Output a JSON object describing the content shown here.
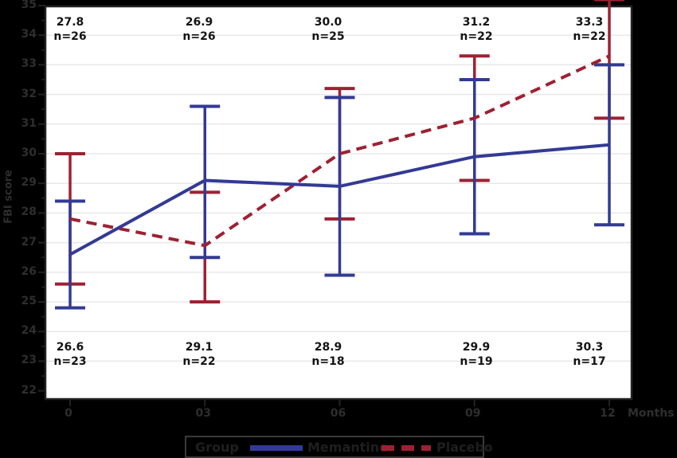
{
  "figure": {
    "background": "#000000",
    "plot_background": "#ffffff",
    "frame_color": "#222222",
    "grid_color": "#e8e8e8",
    "outer_text_color": "#2e2e2e",
    "inner_text_color": "#141414"
  },
  "y_axis": {
    "title": "FBI score"
  },
  "x_axis": {
    "unit_label": "Months"
  },
  "legend": {
    "group_label": "Group",
    "memantine_label": "Memantine",
    "placebo_label": "Placebo",
    "memantine_color": "#333a94",
    "placebo_color": "#9e2133"
  },
  "chart_data": {
    "type": "line",
    "title": "",
    "xlabel": "Months",
    "ylabel": "FBI score",
    "ylim": [
      22,
      35
    ],
    "grid": true,
    "legend_position": "bottom",
    "x_months": [
      0,
      3,
      6,
      9,
      12
    ],
    "x_tick_labels": [
      "0",
      "03",
      "06",
      "09",
      "12"
    ],
    "y_tick_labels": [
      "35",
      "34",
      "33",
      "32",
      "31",
      "30",
      "29",
      "28",
      "27",
      "26",
      "25",
      "24",
      "23",
      "22"
    ],
    "series": [
      {
        "name": "Memantine",
        "color": "#333a94",
        "line_style": "solid",
        "means": [
          26.6,
          29.1,
          28.9,
          29.9,
          30.3
        ],
        "ci_low": [
          24.8,
          26.5,
          25.9,
          27.3,
          27.6
        ],
        "ci_high": [
          28.4,
          31.6,
          31.9,
          32.5,
          33.0
        ],
        "n": [
          23,
          22,
          18,
          19,
          17
        ],
        "labels_position": "bottom"
      },
      {
        "name": "Placebo",
        "color": "#9e2133",
        "line_style": "dashed",
        "means": [
          27.8,
          26.9,
          30.0,
          31.2,
          33.3
        ],
        "ci_low": [
          25.6,
          25.0,
          27.8,
          29.1,
          31.2
        ],
        "ci_high": [
          30.0,
          28.7,
          32.2,
          33.3,
          35.2
        ],
        "n": [
          26,
          26,
          25,
          22,
          22
        ],
        "labels_position": "top"
      }
    ],
    "annotations_top": [
      {
        "value": "27.8",
        "n": "n=26"
      },
      {
        "value": "26.9",
        "n": "n=26"
      },
      {
        "value": "30.0",
        "n": "n=25"
      },
      {
        "value": "31.2",
        "n": "n=22"
      },
      {
        "value": "33.3",
        "n": "n=22"
      }
    ],
    "annotations_bottom": [
      {
        "value": "26.6",
        "n": "n=23"
      },
      {
        "value": "29.1",
        "n": "n=22"
      },
      {
        "value": "28.9",
        "n": "n=18"
      },
      {
        "value": "29.9",
        "n": "n=19"
      },
      {
        "value": "30.3",
        "n": "n=17"
      }
    ]
  }
}
